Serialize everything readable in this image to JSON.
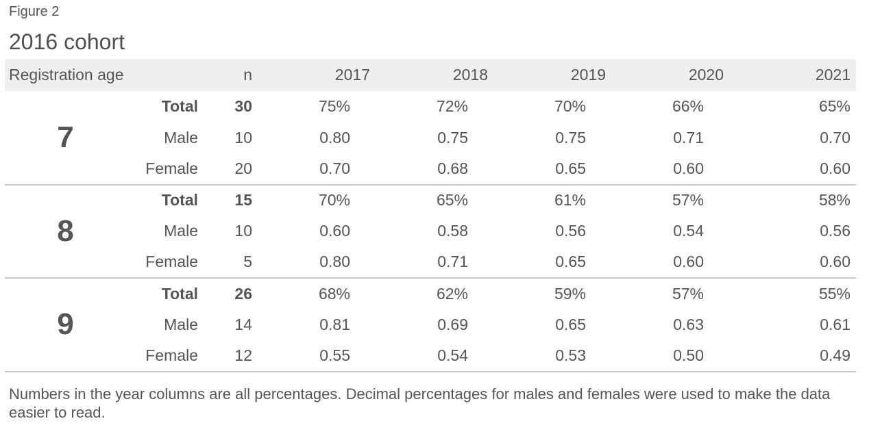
{
  "figure_label": "Figure 2",
  "chart_data": {
    "type": "table",
    "title": "2016 cohort",
    "columns": [
      "Registration age",
      "",
      "n",
      "2017",
      "2018",
      "2019",
      "2020",
      "2021"
    ],
    "groups": [
      {
        "age": "7",
        "rows": [
          {
            "category": "Total",
            "n": "30",
            "values": [
              "75%",
              "72%",
              "70%",
              "66%",
              "65%"
            ]
          },
          {
            "category": "Male",
            "n": "10",
            "values": [
              "0.80",
              "0.75",
              "0.75",
              "0.71",
              "0.70"
            ]
          },
          {
            "category": "Female",
            "n": "20",
            "values": [
              "0.70",
              "0.68",
              "0.65",
              "0.60",
              "0.60"
            ]
          }
        ]
      },
      {
        "age": "8",
        "rows": [
          {
            "category": "Total",
            "n": "15",
            "values": [
              "70%",
              "65%",
              "61%",
              "57%",
              "58%"
            ]
          },
          {
            "category": "Male",
            "n": "10",
            "values": [
              "0.60",
              "0.58",
              "0.56",
              "0.54",
              "0.56"
            ]
          },
          {
            "category": "Female",
            "n": "5",
            "values": [
              "0.80",
              "0.71",
              "0.65",
              "0.60",
              "0.60"
            ]
          }
        ]
      },
      {
        "age": "9",
        "rows": [
          {
            "category": "Total",
            "n": "26",
            "values": [
              "68%",
              "62%",
              "59%",
              "57%",
              "55%"
            ]
          },
          {
            "category": "Male",
            "n": "14",
            "values": [
              "0.81",
              "0.69",
              "0.65",
              "0.63",
              "0.61"
            ]
          },
          {
            "category": "Female",
            "n": "12",
            "values": [
              "0.55",
              "0.54",
              "0.53",
              "0.50",
              "0.49"
            ]
          }
        ]
      }
    ],
    "footnote": "Numbers in the year columns are all percentages. Decimal percentages for males and females were used to make the data easier to read."
  },
  "colors": {
    "text": "#555555",
    "header_background": "#efefef",
    "rule": "#c8c8c8"
  }
}
